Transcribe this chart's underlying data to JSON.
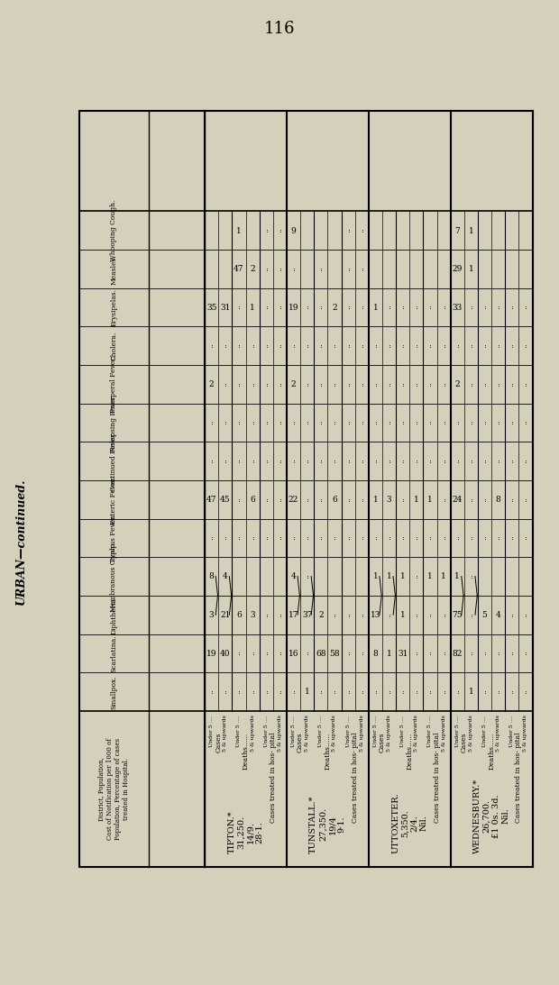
{
  "page_number": "116",
  "bg_color": "#d4d0bc",
  "urban_label": "URBAN—continued.",
  "col_headers": [
    "Smallpox.",
    "Scarlatina.",
    "Diphtheria.",
    "Membranous\nCroup.",
    "Typhus\nFever.",
    "Enteric\nFever.",
    "Continued\nFever.",
    "Relapsing\nFever.",
    "Puerperal\nFever.",
    "Cholera.",
    "Erysipelas.",
    "Measles.",
    "Whooping\nCough."
  ],
  "row_header1": "District, Population,\nCost of Notification per 1000 of\nPopulation, Percentage of cases\ntreated in Hospital.",
  "districts": [
    {
      "name": "TIPTON.*\n31,250.\n14/9.\n28·1.",
      "groups": [
        {
          "label": "Cases",
          "rows": [
            {
              "sub": "Under 5 ....",
              "vals": [
                ":",
                "19",
                "3",
                "8",
                ":",
                "47",
                ":",
                ":",
                "2",
                ":",
                "35",
                "",
                ""
              ]
            },
            {
              "sub": "5 & upwards",
              "vals": [
                ":",
                "40",
                "21",
                "4",
                ":",
                "45",
                ":",
                ":",
                ":",
                ":",
                "31",
                "",
                ""
              ]
            }
          ]
        },
        {
          "label": "Deaths......",
          "rows": [
            {
              "sub": "Under 5 ....",
              "vals": [
                ":",
                ":",
                "6",
                "",
                ":",
                ":",
                ":",
                ":",
                ":",
                ":",
                ":",
                "47",
                "1"
              ]
            },
            {
              "sub": "5 & upwards",
              "vals": [
                ":",
                ":",
                "3",
                "",
                ":",
                "6",
                ":",
                ":",
                ":",
                ":",
                "1",
                "2",
                ""
              ]
            }
          ]
        },
        {
          "label": "Cases treated in hos-\npital",
          "rows": [
            {
              "sub": "Under 5 ....",
              "vals": [
                ":",
                ":",
                ":",
                "",
                ":",
                ":",
                ":",
                ":",
                ":",
                ":",
                ":",
                ":",
                ":"
              ]
            },
            {
              "sub": "5 & upwards",
              "vals": [
                ":",
                ":",
                ":",
                "",
                ":",
                ":",
                ":",
                ":",
                ":",
                ":",
                ":",
                ":",
                ":"
              ]
            }
          ]
        }
      ]
    },
    {
      "name": "TUNSTALL.*\n27,350.\n19/4\n9·1.",
      "groups": [
        {
          "label": "Cases",
          "rows": [
            {
              "sub": "Under 5 ....",
              "vals": [
                ":",
                "16",
                "17",
                "4",
                ":",
                "22",
                ":",
                ":",
                "2",
                ":",
                "19",
                ":",
                "9"
              ]
            },
            {
              "sub": "5 & upwards",
              "vals": [
                "1",
                ":",
                "37",
                ":",
                ":",
                ":",
                ":",
                ":",
                ":",
                ":",
                ":",
                "",
                ""
              ]
            }
          ]
        },
        {
          "label": "Deaths......",
          "rows": [
            {
              "sub": "Under 5 ....",
              "vals": [
                ":",
                "68",
                "2",
                "",
                ":",
                ":",
                ":",
                ":",
                ":",
                ":",
                ":",
                ":",
                ""
              ]
            },
            {
              "sub": "5 & upwards",
              "vals": [
                ":",
                "58",
                ":",
                "",
                ":",
                "6",
                ":",
                ":",
                ":",
                ":",
                "2",
                "",
                ""
              ]
            }
          ]
        },
        {
          "label": "Cases treated in hos-\npital",
          "rows": [
            {
              "sub": "Under 5 ....",
              "vals": [
                ":",
                ":",
                ":",
                "",
                ":",
                ":",
                ":",
                ":",
                ":",
                ":",
                ":",
                ":",
                ":"
              ]
            },
            {
              "sub": "5 & upwards",
              "vals": [
                ":",
                ":",
                ":",
                "",
                ":",
                ":",
                ":",
                ":",
                ":",
                ":",
                ":",
                ":",
                ":"
              ]
            }
          ]
        }
      ]
    },
    {
      "name": "UTTOXETER.\n5,350.\n2/4.\nNil.",
      "groups": [
        {
          "label": "Cases",
          "rows": [
            {
              "sub": "Under 5 ....",
              "vals": [
                ":",
                "8",
                "13",
                "1",
                ":",
                "1",
                ":",
                ":",
                ":",
                ":",
                "1",
                "",
                ""
              ]
            },
            {
              "sub": "5 & upwards",
              "vals": [
                ":",
                "1",
                ":",
                "1",
                ":",
                "3",
                ":",
                ":",
                ":",
                ":",
                ":",
                "",
                ""
              ]
            }
          ]
        },
        {
          "label": "Deaths......",
          "rows": [
            {
              "sub": "Under 5 ....",
              "vals": [
                ":",
                "31",
                "1",
                "1",
                ":",
                ":",
                ":",
                ":",
                ":",
                ":",
                ":",
                "",
                ""
              ]
            },
            {
              "sub": "5 & upwards",
              "vals": [
                ":",
                ":",
                ":",
                ":",
                ":",
                "1",
                ":",
                ":",
                ":",
                ":",
                ":",
                "",
                ""
              ]
            }
          ]
        },
        {
          "label": "Cases treated in hos-\npital",
          "rows": [
            {
              "sub": "Under 5 ....",
              "vals": [
                ":",
                ":",
                ":",
                "1",
                ":",
                "1",
                ":",
                ":",
                ":",
                ":",
                ":",
                "",
                ""
              ]
            },
            {
              "sub": "5 & upwards",
              "vals": [
                ":",
                ":",
                ":",
                "1",
                ":",
                ":",
                ":",
                ":",
                ":",
                ":",
                ":",
                "",
                ""
              ]
            }
          ]
        }
      ]
    },
    {
      "name": "WEDNESBURY.*\n26,700.\n£1 0s. 3d.\nNil.",
      "groups": [
        {
          "label": "Cases",
          "rows": [
            {
              "sub": "Under 5 ....",
              "vals": [
                ":",
                "82",
                "75",
                "1",
                ":",
                "24",
                ":",
                ":",
                "2",
                ":",
                "33",
                "29",
                "7"
              ]
            },
            {
              "sub": "5 & upwards",
              "vals": [
                "1",
                ":",
                ":",
                ":",
                ":",
                ":",
                ":",
                ":",
                ":",
                ":",
                ":",
                "1",
                "1"
              ]
            }
          ]
        },
        {
          "label": "Deaths......",
          "rows": [
            {
              "sub": "Under 5 ....",
              "vals": [
                ":",
                ":",
                "5",
                "",
                ":",
                ":",
                ":",
                ":",
                ":",
                ":",
                ":",
                "",
                ""
              ]
            },
            {
              "sub": "5 & upwards",
              "vals": [
                ":",
                ":",
                "4",
                "",
                ":",
                "8",
                ":",
                ":",
                ":",
                ":",
                ":",
                "",
                ""
              ]
            }
          ]
        },
        {
          "label": "Cases treated in hos-\npital",
          "rows": [
            {
              "sub": "Under 5 ....",
              "vals": [
                ":",
                ":",
                ":",
                "",
                ":",
                ":",
                ":",
                ":",
                ":",
                ":",
                ":",
                "",
                ""
              ]
            },
            {
              "sub": "5 & upwards",
              "vals": [
                ":",
                ":",
                ":",
                "",
                ":",
                ":",
                ":",
                ":",
                ":",
                ":",
                ":",
                "",
                ""
              ]
            }
          ]
        }
      ]
    }
  ]
}
